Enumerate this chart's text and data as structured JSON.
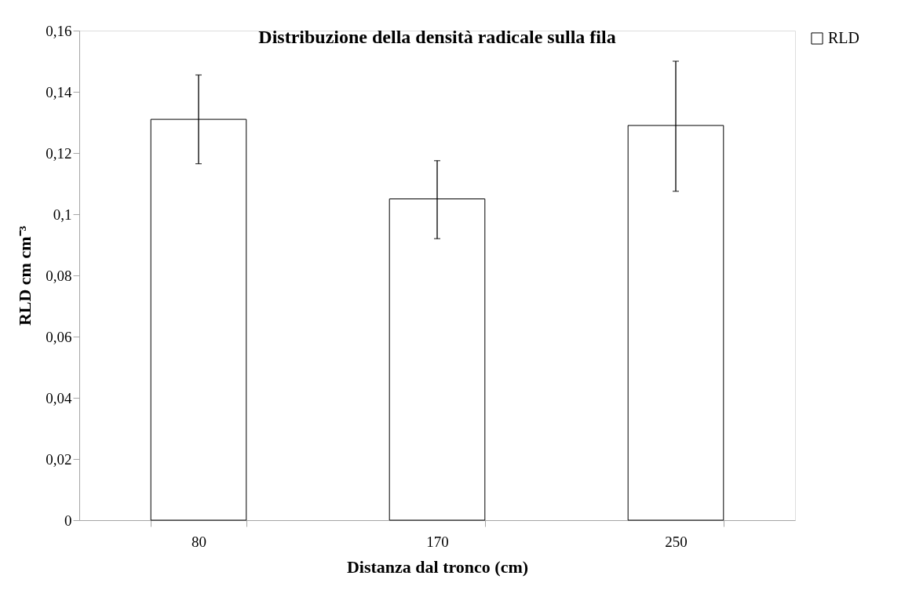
{
  "chart_data": {
    "type": "bar",
    "title": "Distribuzione della densità radicale sulla fila",
    "xlabel": "Distanza dal tronco  (cm)",
    "ylabel": "RLD  cm cm⁻³",
    "categories": [
      "80",
      "170",
      "250"
    ],
    "series": [
      {
        "name": "RLD",
        "color": "#ffffff",
        "values": [
          0.131,
          0.105,
          0.129
        ],
        "errors": [
          [
            0.1165,
            0.1455
          ],
          [
            0.092,
            0.1175
          ],
          [
            0.1075,
            0.15
          ]
        ]
      }
    ],
    "ylim": [
      0,
      0.16
    ],
    "yticks": [
      0,
      {
        "value": 0.02,
        "label": "0,02"
      },
      {
        "value": 0.04,
        "label": "0,04"
      },
      {
        "value": 0.06,
        "label": "0,06"
      },
      {
        "value": 0.08,
        "label": "0,08"
      },
      {
        "value": 0.1,
        "label": "0,1"
      },
      {
        "value": 0.12,
        "label": "0,12"
      },
      {
        "value": 0.14,
        "label": "0,14"
      },
      {
        "value": 0.16,
        "label": "0,16"
      }
    ],
    "grid": false,
    "legend": "right"
  }
}
